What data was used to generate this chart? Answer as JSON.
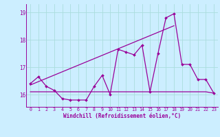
{
  "xlabel": "Windchill (Refroidissement éolien,°C)",
  "bg_color": "#cceeff",
  "line_color": "#990099",
  "grid_color": "#aadddd",
  "x_values": [
    0,
    1,
    2,
    3,
    4,
    5,
    6,
    7,
    8,
    9,
    10,
    11,
    12,
    13,
    14,
    15,
    16,
    17,
    18,
    19,
    20,
    21,
    22,
    23
  ],
  "y_main": [
    16.4,
    16.65,
    16.3,
    16.15,
    15.85,
    15.8,
    15.8,
    15.8,
    16.3,
    16.7,
    16.0,
    17.65,
    17.55,
    17.45,
    17.8,
    16.1,
    17.5,
    18.8,
    18.95,
    17.1,
    17.1,
    16.55,
    16.55,
    16.05
  ],
  "y_trend_up": [
    16.35,
    16.47,
    16.59,
    16.71,
    16.83,
    16.95,
    17.07,
    17.19,
    17.31,
    17.43,
    17.55,
    17.67,
    17.79,
    17.91,
    18.03,
    18.15,
    18.27,
    18.39,
    18.51,
    null,
    null,
    null,
    null,
    null
  ],
  "y_flat": [
    16.1,
    16.1,
    16.1,
    16.1,
    16.1,
    16.1,
    16.1,
    16.1,
    16.1,
    16.1,
    16.1,
    16.1,
    16.1,
    16.1,
    16.1,
    16.1,
    16.1,
    16.1,
    16.1,
    16.1,
    16.1,
    16.1,
    16.1,
    16.05
  ],
  "ylim": [
    15.55,
    19.3
  ],
  "yticks": [
    16,
    17,
    18,
    19
  ],
  "xticks": [
    0,
    1,
    2,
    3,
    4,
    5,
    6,
    7,
    8,
    9,
    10,
    11,
    12,
    13,
    14,
    15,
    16,
    17,
    18,
    19,
    20,
    21,
    22,
    23
  ]
}
